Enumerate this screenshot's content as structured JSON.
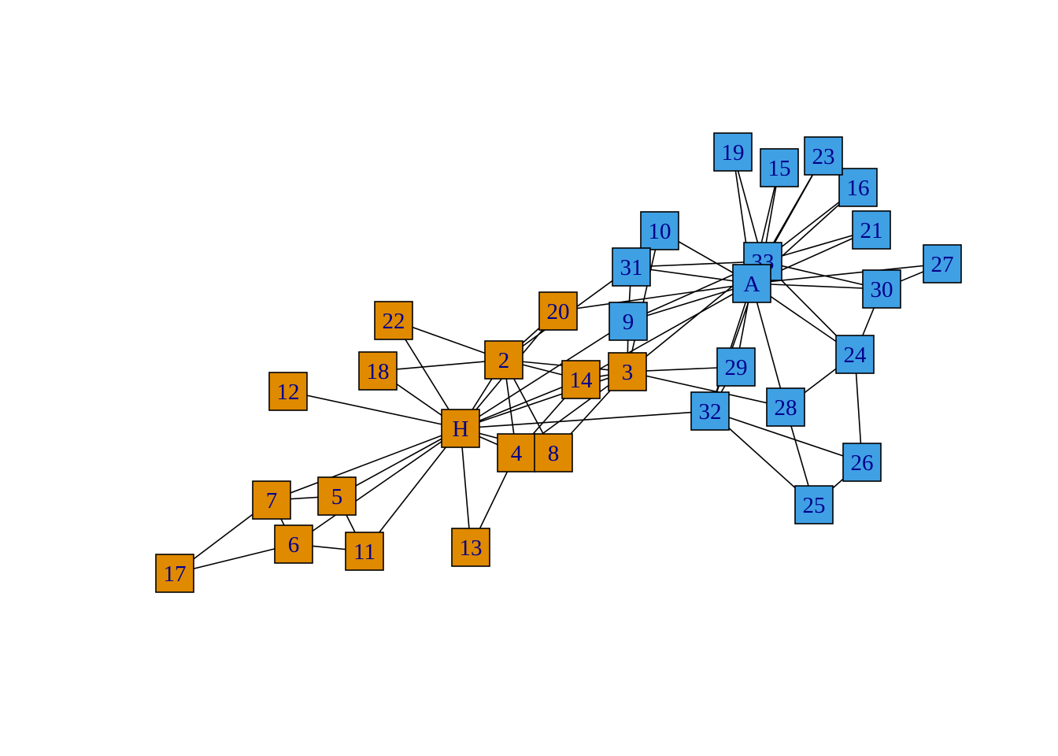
{
  "colors": {
    "group_1": "#E08A00",
    "group_2": "#40A0E4",
    "label": "#00008B",
    "edge": "#000000",
    "border": "#000000"
  },
  "nodes": [
    {
      "id": "1",
      "label": "H",
      "group": 1
    },
    {
      "id": "2",
      "label": "2",
      "group": 1
    },
    {
      "id": "3",
      "label": "3",
      "group": 1
    },
    {
      "id": "4",
      "label": "4",
      "group": 1
    },
    {
      "id": "5",
      "label": "5",
      "group": 1
    },
    {
      "id": "6",
      "label": "6",
      "group": 1
    },
    {
      "id": "7",
      "label": "7",
      "group": 1
    },
    {
      "id": "8",
      "label": "8",
      "group": 1
    },
    {
      "id": "9",
      "label": "9",
      "group": 2
    },
    {
      "id": "10",
      "label": "10",
      "group": 2
    },
    {
      "id": "11",
      "label": "11",
      "group": 1
    },
    {
      "id": "12",
      "label": "12",
      "group": 1
    },
    {
      "id": "13",
      "label": "13",
      "group": 1
    },
    {
      "id": "14",
      "label": "14",
      "group": 1
    },
    {
      "id": "15",
      "label": "15",
      "group": 2
    },
    {
      "id": "16",
      "label": "16",
      "group": 2
    },
    {
      "id": "17",
      "label": "17",
      "group": 1
    },
    {
      "id": "18",
      "label": "18",
      "group": 1
    },
    {
      "id": "19",
      "label": "19",
      "group": 2
    },
    {
      "id": "20",
      "label": "20",
      "group": 1
    },
    {
      "id": "21",
      "label": "21",
      "group": 2
    },
    {
      "id": "22",
      "label": "22",
      "group": 1
    },
    {
      "id": "23",
      "label": "23",
      "group": 2
    },
    {
      "id": "24",
      "label": "24",
      "group": 2
    },
    {
      "id": "25",
      "label": "25",
      "group": 2
    },
    {
      "id": "26",
      "label": "26",
      "group": 2
    },
    {
      "id": "27",
      "label": "27",
      "group": 2
    },
    {
      "id": "28",
      "label": "28",
      "group": 2
    },
    {
      "id": "29",
      "label": "29",
      "group": 2
    },
    {
      "id": "30",
      "label": "30",
      "group": 2
    },
    {
      "id": "31",
      "label": "31",
      "group": 2
    },
    {
      "id": "32",
      "label": "32",
      "group": 2
    },
    {
      "id": "33",
      "label": "33",
      "group": 2
    },
    {
      "id": "34",
      "label": "A",
      "group": 2
    }
  ],
  "edges": [
    [
      "1",
      "2"
    ],
    [
      "1",
      "3"
    ],
    [
      "1",
      "4"
    ],
    [
      "1",
      "5"
    ],
    [
      "1",
      "6"
    ],
    [
      "1",
      "7"
    ],
    [
      "1",
      "8"
    ],
    [
      "1",
      "9"
    ],
    [
      "1",
      "11"
    ],
    [
      "1",
      "12"
    ],
    [
      "1",
      "13"
    ],
    [
      "1",
      "14"
    ],
    [
      "1",
      "18"
    ],
    [
      "1",
      "20"
    ],
    [
      "1",
      "22"
    ],
    [
      "1",
      "32"
    ],
    [
      "2",
      "3"
    ],
    [
      "2",
      "4"
    ],
    [
      "2",
      "8"
    ],
    [
      "2",
      "14"
    ],
    [
      "2",
      "18"
    ],
    [
      "2",
      "20"
    ],
    [
      "2",
      "22"
    ],
    [
      "2",
      "31"
    ],
    [
      "3",
      "4"
    ],
    [
      "3",
      "8"
    ],
    [
      "3",
      "9"
    ],
    [
      "3",
      "10"
    ],
    [
      "3",
      "14"
    ],
    [
      "3",
      "28"
    ],
    [
      "3",
      "29"
    ],
    [
      "3",
      "33"
    ],
    [
      "4",
      "8"
    ],
    [
      "4",
      "13"
    ],
    [
      "4",
      "14"
    ],
    [
      "5",
      "7"
    ],
    [
      "5",
      "11"
    ],
    [
      "6",
      "7"
    ],
    [
      "6",
      "11"
    ],
    [
      "6",
      "17"
    ],
    [
      "7",
      "17"
    ],
    [
      "9",
      "31"
    ],
    [
      "9",
      "33"
    ],
    [
      "9",
      "34"
    ],
    [
      "10",
      "34"
    ],
    [
      "14",
      "34"
    ],
    [
      "15",
      "33"
    ],
    [
      "15",
      "34"
    ],
    [
      "16",
      "33"
    ],
    [
      "16",
      "34"
    ],
    [
      "19",
      "33"
    ],
    [
      "19",
      "34"
    ],
    [
      "20",
      "34"
    ],
    [
      "21",
      "33"
    ],
    [
      "21",
      "34"
    ],
    [
      "23",
      "33"
    ],
    [
      "23",
      "34"
    ],
    [
      "24",
      "26"
    ],
    [
      "24",
      "28"
    ],
    [
      "24",
      "30"
    ],
    [
      "24",
      "33"
    ],
    [
      "24",
      "34"
    ],
    [
      "25",
      "26"
    ],
    [
      "25",
      "28"
    ],
    [
      "25",
      "32"
    ],
    [
      "26",
      "32"
    ],
    [
      "27",
      "30"
    ],
    [
      "27",
      "34"
    ],
    [
      "28",
      "34"
    ],
    [
      "29",
      "32"
    ],
    [
      "29",
      "34"
    ],
    [
      "30",
      "33"
    ],
    [
      "30",
      "34"
    ],
    [
      "31",
      "33"
    ],
    [
      "31",
      "34"
    ],
    [
      "32",
      "33"
    ],
    [
      "32",
      "34"
    ],
    [
      "33",
      "34"
    ]
  ]
}
